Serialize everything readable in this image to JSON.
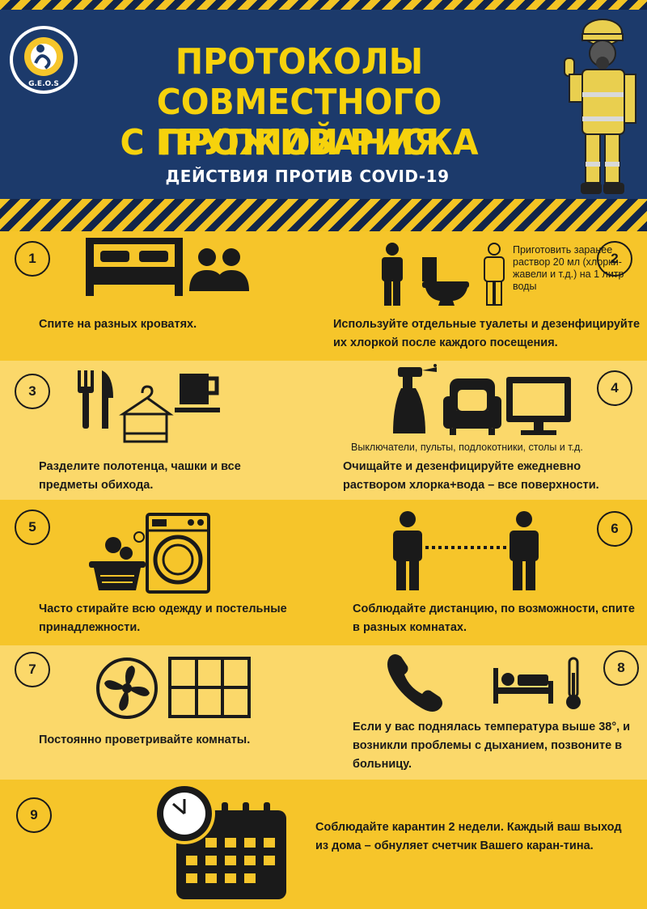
{
  "header": {
    "title_lines": [
      "ПРОТОКОЛЫ",
      "СОВМЕСТНОГО ПРОЖИВАНИЯ",
      "С ГРУППОЙ РИСКА"
    ],
    "subtitle": "ДЕЙСТВИЯ ПРОТИВ COVID-19",
    "logo_text": "G.E.O.S"
  },
  "items": [
    {
      "number": "1",
      "text": "Спите на разных кроватях.",
      "icons": [
        "bed-icon",
        "people-icon"
      ]
    },
    {
      "number": "2",
      "text": "Используйте отдельные туалеты и дезенфицируйте их хлоркой после каждого посещения.",
      "note": "Приготовить заранее раствор 20 мл (хлорки-жавели и т.д.) на 1 литр воды",
      "icons": [
        "person-icon",
        "toilet-icon",
        "person-outline-icon"
      ]
    },
    {
      "number": "3",
      "text": "Разделите полотенца, чашки и все предметы обихода.",
      "icons": [
        "fork-knife-icon",
        "towel-hanger-icon",
        "cup-icon"
      ]
    },
    {
      "number": "4",
      "text": "Очищайте и дезенфицируйте ежедневно раствором хлорка+вода – все поверхности.",
      "note": "Выключатели, пульты, подлокотники, столы и т.д.",
      "icons": [
        "spray-bottle-icon",
        "armchair-icon",
        "monitor-icon"
      ]
    },
    {
      "number": "5",
      "text": "Часто стирайте всю одежду и постельные принадлежности.",
      "icons": [
        "laundry-basket-icon",
        "washing-machine-icon"
      ]
    },
    {
      "number": "6",
      "text": "Соблюдайте дистанцию, по возможности, спите в разных комнатах.",
      "icons": [
        "person-icon",
        "distance-dots-icon",
        "person-icon"
      ]
    },
    {
      "number": "7",
      "text": "Постоянно проветривайте комнаты.",
      "icons": [
        "fan-icon",
        "window-icon"
      ]
    },
    {
      "number": "8",
      "text": "Если у вас поднялась температура выше 38°, и возникли проблемы с дыханием, позвоните в больницу.",
      "icons": [
        "phone-icon",
        "sick-bed-icon",
        "thermometer-icon"
      ]
    },
    {
      "number": "9",
      "text": "Соблюдайте карантин 2 недели. Каждый ваш выход из дома – обнуляет счетчик Вашего каран-тина.",
      "icons": [
        "clock-icon",
        "calendar-icon"
      ]
    }
  ],
  "colors": {
    "navy": "#1c3a6b",
    "yellow": "#f6c52a",
    "light_yellow": "#fbd86a",
    "title_yellow": "#f6d20c",
    "ink": "#1a1a1a"
  }
}
